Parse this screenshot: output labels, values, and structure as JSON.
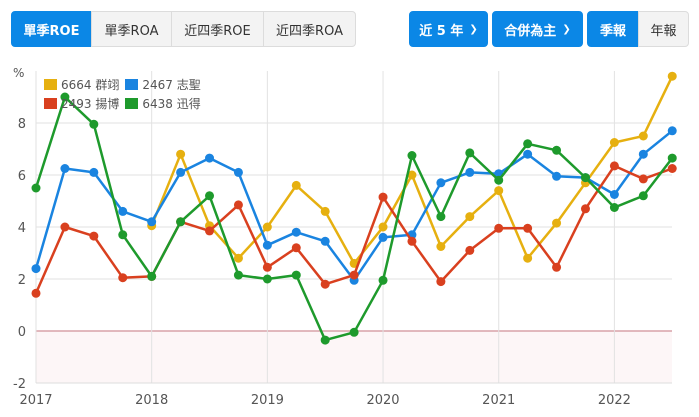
{
  "toolbar": {
    "metric_tabs": [
      {
        "label": "單季ROE",
        "active": true
      },
      {
        "label": "單季ROA",
        "active": false
      },
      {
        "label": "近四季ROE",
        "active": false
      },
      {
        "label": "近四季ROA",
        "active": false
      }
    ],
    "range_dropdown": {
      "label": "近 5 年",
      "icon": "chevron-down-icon"
    },
    "basis_dropdown": {
      "label": "合併為主",
      "icon": "chevron-down-icon"
    },
    "period_tabs": [
      {
        "label": "季報",
        "active": true
      },
      {
        "label": "年報",
        "active": false
      }
    ]
  },
  "colors": {
    "accent": "#0b87e6",
    "grid": "#e2e2e2",
    "zero_line": "#d8a2a9",
    "negative_fill": "#fdf6f7"
  },
  "chart_data": {
    "type": "line",
    "title": "",
    "xlabel": "",
    "ylabel": "%",
    "ylim": [
      -2,
      10
    ],
    "yticks": [
      -2,
      0,
      2,
      4,
      6,
      8
    ],
    "xticks": [
      "2017",
      "2018",
      "2019",
      "2020",
      "2021",
      "2022"
    ],
    "grid": true,
    "legend_position": "top-left",
    "x": [
      "2017Q1",
      "2017Q2",
      "2017Q3",
      "2017Q4",
      "2018Q1",
      "2018Q2",
      "2018Q3",
      "2018Q4",
      "2019Q1",
      "2019Q2",
      "2019Q3",
      "2019Q4",
      "2020Q1",
      "2020Q2",
      "2020Q3",
      "2020Q4",
      "2021Q1",
      "2021Q2",
      "2021Q3",
      "2021Q4",
      "2022Q1",
      "2022Q2",
      "2022Q3"
    ],
    "series": [
      {
        "name": "6664 群翊",
        "color": "#e6b010",
        "values": [
          null,
          null,
          null,
          null,
          4.05,
          6.8,
          4.05,
          2.8,
          4.0,
          5.6,
          4.6,
          2.6,
          4.0,
          6.0,
          3.25,
          4.4,
          5.4,
          2.8,
          4.15,
          5.7,
          7.25,
          7.5,
          9.8
        ]
      },
      {
        "name": "2467 志聖",
        "color": "#1a84e0",
        "values": [
          2.4,
          6.25,
          6.1,
          4.6,
          4.2,
          6.1,
          6.65,
          6.1,
          3.3,
          3.8,
          3.45,
          1.95,
          3.6,
          3.7,
          5.7,
          6.1,
          6.05,
          6.8,
          5.95,
          5.9,
          5.25,
          6.8,
          7.7
        ]
      },
      {
        "name": "2493 揚博",
        "color": "#d9401f",
        "values": [
          1.45,
          4.0,
          3.65,
          2.05,
          2.1,
          4.2,
          3.85,
          4.85,
          2.45,
          3.2,
          1.8,
          2.15,
          5.15,
          3.45,
          1.9,
          3.1,
          3.95,
          3.95,
          2.45,
          4.7,
          6.35,
          5.85,
          6.25
        ]
      },
      {
        "name": "6438 迅得",
        "color": "#1e9a2c",
        "values": [
          5.5,
          9.0,
          7.95,
          3.7,
          2.1,
          4.2,
          5.2,
          2.15,
          2.0,
          2.15,
          -0.35,
          -0.05,
          1.95,
          6.75,
          4.4,
          6.85,
          5.8,
          7.2,
          6.95,
          5.9,
          4.75,
          5.2,
          6.65
        ]
      }
    ]
  }
}
